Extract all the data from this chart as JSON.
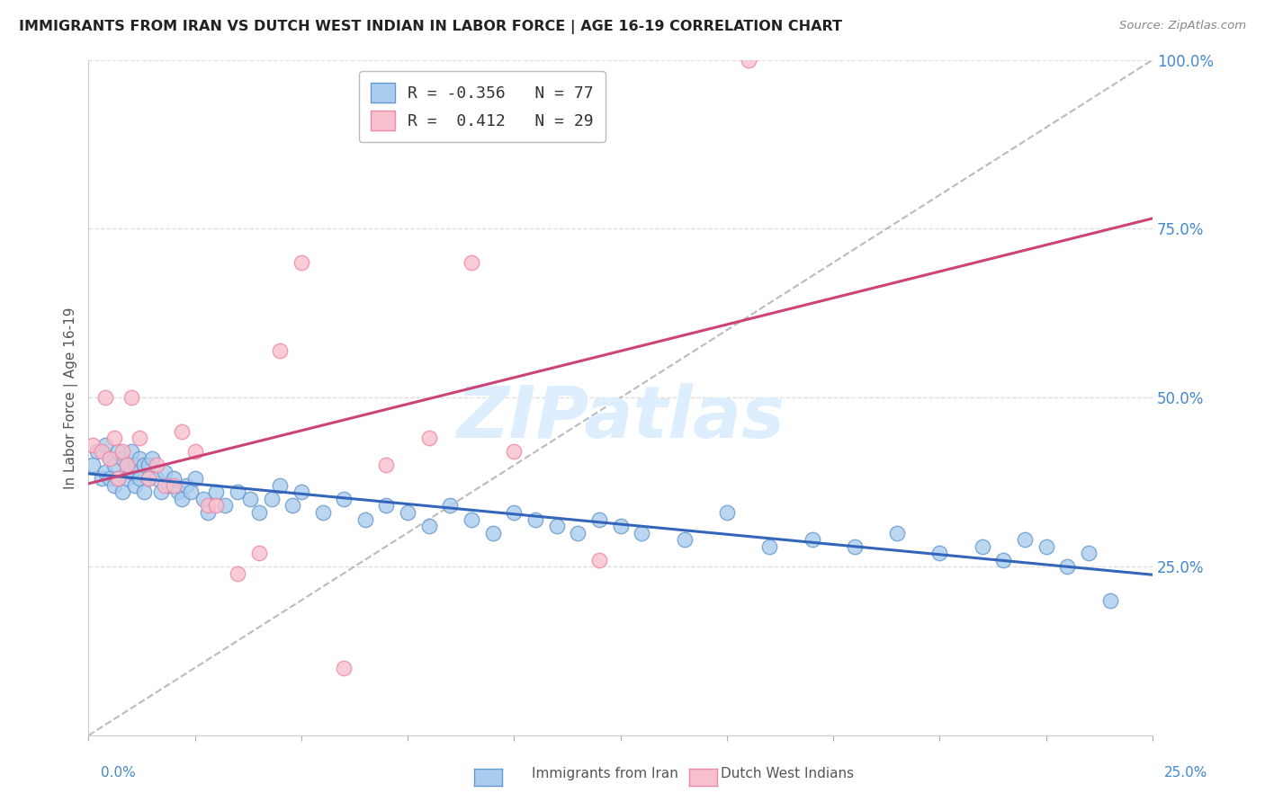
{
  "title": "IMMIGRANTS FROM IRAN VS DUTCH WEST INDIAN IN LABOR FORCE | AGE 16-19 CORRELATION CHART",
  "source": "Source: ZipAtlas.com",
  "ylabel": "In Labor Force | Age 16-19",
  "xlim": [
    0.0,
    0.25
  ],
  "ylim": [
    0.0,
    1.0
  ],
  "yticks": [
    0.0,
    0.25,
    0.5,
    0.75,
    1.0
  ],
  "yticklabels_right": [
    "",
    "25.0%",
    "50.0%",
    "75.0%",
    "100.0%"
  ],
  "x_bottom_left": "0.0%",
  "x_bottom_right": "25.0%",
  "legend_blue_r": "-0.356",
  "legend_blue_n": "77",
  "legend_pink_r": " 0.412",
  "legend_pink_n": "29",
  "blue_color": "#aaccee",
  "pink_color": "#f8c0cc",
  "blue_edge": "#6699cc",
  "pink_edge": "#ee88aa",
  "trendline_blue": "#3366bb",
  "trendline_pink": "#cc4477",
  "ref_line_color": "#bbbbbb",
  "watermark_color": "#ddeeff",
  "grid_color": "#dddddd",
  "background_color": "#ffffff",
  "blue_scatter_x": [
    0.001,
    0.002,
    0.003,
    0.004,
    0.004,
    0.005,
    0.005,
    0.006,
    0.006,
    0.007,
    0.007,
    0.008,
    0.008,
    0.009,
    0.009,
    0.01,
    0.01,
    0.011,
    0.011,
    0.012,
    0.012,
    0.013,
    0.013,
    0.014,
    0.014,
    0.015,
    0.016,
    0.017,
    0.018,
    0.019,
    0.02,
    0.021,
    0.022,
    0.023,
    0.024,
    0.025,
    0.027,
    0.028,
    0.03,
    0.032,
    0.035,
    0.038,
    0.04,
    0.043,
    0.045,
    0.048,
    0.05,
    0.055,
    0.06,
    0.065,
    0.07,
    0.075,
    0.08,
    0.085,
    0.09,
    0.095,
    0.1,
    0.105,
    0.11,
    0.115,
    0.12,
    0.125,
    0.13,
    0.14,
    0.15,
    0.16,
    0.17,
    0.18,
    0.19,
    0.2,
    0.21,
    0.215,
    0.22,
    0.225,
    0.23,
    0.235,
    0.24
  ],
  "blue_scatter_y": [
    0.4,
    0.42,
    0.38,
    0.43,
    0.39,
    0.41,
    0.38,
    0.4,
    0.37,
    0.42,
    0.38,
    0.41,
    0.36,
    0.4,
    0.38,
    0.42,
    0.39,
    0.4,
    0.37,
    0.41,
    0.38,
    0.4,
    0.36,
    0.4,
    0.38,
    0.41,
    0.38,
    0.36,
    0.39,
    0.37,
    0.38,
    0.36,
    0.35,
    0.37,
    0.36,
    0.38,
    0.35,
    0.33,
    0.36,
    0.34,
    0.36,
    0.35,
    0.33,
    0.35,
    0.37,
    0.34,
    0.36,
    0.33,
    0.35,
    0.32,
    0.34,
    0.33,
    0.31,
    0.34,
    0.32,
    0.3,
    0.33,
    0.32,
    0.31,
    0.3,
    0.32,
    0.31,
    0.3,
    0.29,
    0.33,
    0.28,
    0.29,
    0.28,
    0.3,
    0.27,
    0.28,
    0.26,
    0.29,
    0.28,
    0.25,
    0.27,
    0.2
  ],
  "pink_scatter_x": [
    0.001,
    0.003,
    0.004,
    0.005,
    0.006,
    0.007,
    0.008,
    0.009,
    0.01,
    0.012,
    0.014,
    0.016,
    0.018,
    0.02,
    0.022,
    0.025,
    0.028,
    0.03,
    0.035,
    0.04,
    0.045,
    0.05,
    0.06,
    0.07,
    0.08,
    0.09,
    0.1,
    0.12,
    0.155
  ],
  "pink_scatter_y": [
    0.43,
    0.42,
    0.5,
    0.41,
    0.44,
    0.38,
    0.42,
    0.4,
    0.5,
    0.44,
    0.38,
    0.4,
    0.37,
    0.37,
    0.45,
    0.42,
    0.34,
    0.34,
    0.24,
    0.27,
    0.57,
    0.7,
    0.1,
    0.4,
    0.44,
    0.7,
    0.42,
    0.26,
    1.0
  ]
}
